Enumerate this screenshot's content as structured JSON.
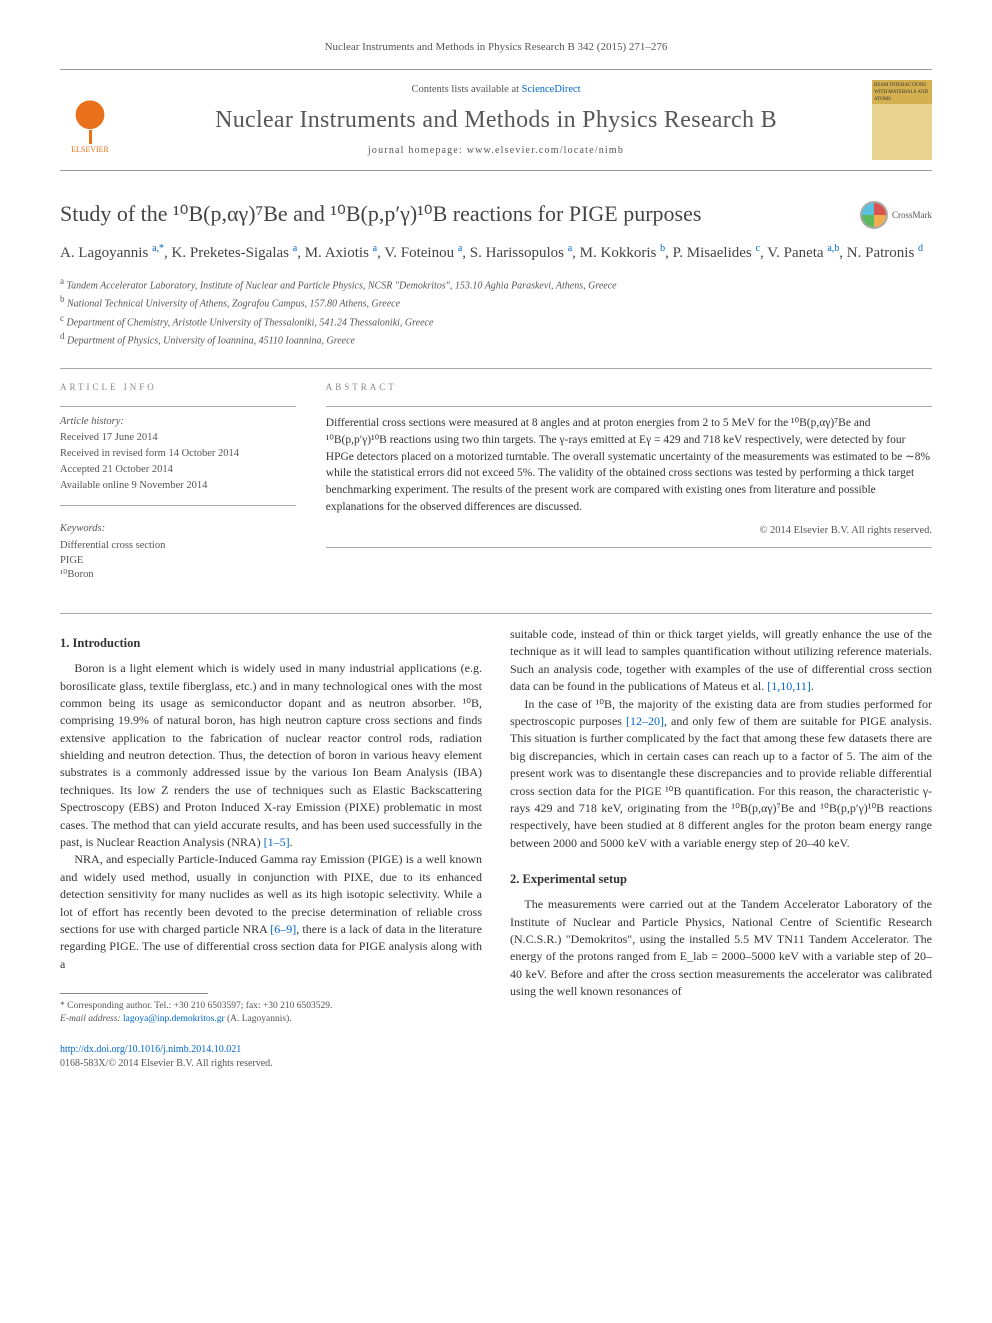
{
  "journal_ref": "Nuclear Instruments and Methods in Physics Research B 342 (2015) 271–276",
  "header": {
    "contents_prefix": "Contents lists available at ",
    "contents_link": "ScienceDirect",
    "journal_title": "Nuclear Instruments and Methods in Physics Research B",
    "homepage_prefix": "journal homepage: ",
    "homepage_url": "www.elsevier.com/locate/nimb",
    "elsevier_label": "ELSEVIER",
    "cover_text": "BEAM INTERACTIONS WITH MATERIALS AND ATOMS"
  },
  "title": "Study of the ¹⁰B(p,αγ)⁷Be and ¹⁰B(p,p′γ)¹⁰B reactions for PIGE purposes",
  "crossmark": "CrossMark",
  "authors_html": "A. Lagoyannis <sup>a,*</sup>, K. Preketes-Sigalas <sup>a</sup>, M. Axiotis <sup>a</sup>, V. Foteinou <sup>a</sup>, S. Harissopulos <sup>a</sup>, M. Kokkoris <sup>b</sup>, P. Misaelides <sup>c</sup>, V. Paneta <sup>a,b</sup>, N. Patronis <sup>d</sup>",
  "affiliations": [
    {
      "sup": "a",
      "text": "Tandem Accelerator Laboratory, Institute of Nuclear and Particle Physics, NCSR \"Demokritos\", 153.10 Aghia Paraskevi, Athens, Greece"
    },
    {
      "sup": "b",
      "text": "National Technical University of Athens, Zografou Campus, 157.80 Athens, Greece"
    },
    {
      "sup": "c",
      "text": "Department of Chemistry, Aristotle University of Thessaloniki, 541.24 Thessaloniki, Greece"
    },
    {
      "sup": "d",
      "text": "Department of Physics, University of Ioannina, 45110 Ioannina, Greece"
    }
  ],
  "article_info_label": "ARTICLE INFO",
  "abstract_label": "ABSTRACT",
  "history": {
    "head": "Article history:",
    "received": "Received 17 June 2014",
    "revised": "Received in revised form 14 October 2014",
    "accepted": "Accepted 21 October 2014",
    "online": "Available online 9 November 2014"
  },
  "keywords": {
    "head": "Keywords:",
    "items": [
      "Differential cross section",
      "PIGE",
      "¹⁰Boron"
    ]
  },
  "abstract_text": "Differential cross sections were measured at 8 angles and at proton energies from 2 to 5 MeV for the ¹⁰B(p,αγ)⁷Be and ¹⁰B(p,p′γ)¹⁰B reactions using two thin targets. The γ-rays emitted at Eγ = 429 and 718 keV respectively, were detected by four HPGe detectors placed on a motorized turntable. The overall systematic uncertainty of the measurements was estimated to be ∼8% while the statistical errors did not exceed 5%. The validity of the obtained cross sections was tested by performing a thick target benchmarking experiment. The results of the present work are compared with existing ones from literature and possible explanations for the observed differences are discussed.",
  "copyright": "© 2014 Elsevier B.V. All rights reserved.",
  "section1": {
    "heading": "1. Introduction",
    "p1": "Boron is a light element which is widely used in many industrial applications (e.g. borosilicate glass, textile fiberglass, etc.) and in many technological ones with the most common being its usage as semiconductor dopant and as neutron absorber. ¹⁰B, comprising 19.9% of natural boron, has high neutron capture cross sections and finds extensive application to the fabrication of nuclear reactor control rods, radiation shielding and neutron detection. Thus, the detection of boron in various heavy element substrates is a commonly addressed issue by the various Ion Beam Analysis (IBA) techniques. Its low Z renders the use of techniques such as Elastic Backscattering Spectroscopy (EBS) and Proton Induced X-ray Emission (PIXE) problematic in most cases. The method that can yield accurate results, and has been used successfully in the past, is Nuclear Reaction Analysis (NRA) ",
    "p1_ref": "[1–5]",
    "p1_tail": ".",
    "p2": "NRA, and especially Particle-Induced Gamma ray Emission (PIGE) is a well known and widely used method, usually in conjunction with PIXE, due to its enhanced detection sensitivity for many nuclides as well as its high isotopic selectivity. While a lot of effort has recently been devoted to the precise determination of reliable cross sections for use with charged particle NRA ",
    "p2_ref": "[6–9]",
    "p2_mid": ", there is a lack of data in the literature regarding PIGE. The use of differential cross section data for PIGE analysis along with a ",
    "p3_pre": "suitable code, instead of thin or thick target yields, will greatly enhance the use of the technique as it will lead to samples quantification without utilizing reference materials. Such an analysis code, together with examples of the use of differential cross section data can be found in the publications of Mateus et al. ",
    "p3_ref": "[1,10,11]",
    "p3_tail": ".",
    "p4_pre": "In the case of ¹⁰B, the majority of the existing data are from studies performed for spectroscopic purposes ",
    "p4_ref": "[12–20]",
    "p4_tail": ", and only few of them are suitable for PIGE analysis. This situation is further complicated by the fact that among these few datasets there are big discrepancies, which in certain cases can reach up to a factor of 5. The aim of the present work was to disentangle these discrepancies and to provide reliable differential cross section data for the PIGE ¹⁰B quantification. For this reason, the characteristic γ-rays 429 and 718 keV, originating from the ¹⁰B(p,αγ)⁷Be and ¹⁰B(p,p′γ)¹⁰B reactions respectively, have been studied at 8 different angles for the proton beam energy range between 2000 and 5000 keV with a variable energy step of 20–40 keV."
  },
  "section2": {
    "heading": "2. Experimental setup",
    "p1": "The measurements were carried out at the Tandem Accelerator Laboratory of the Institute of Nuclear and Particle Physics, National Centre of Scientific Research (N.C.S.R.) \"Demokritos\", using the installed 5.5 MV TN11 Tandem Accelerator. The energy of the protons ranged from E_lab = 2000–5000 keV with a variable step of 20–40 keV. Before and after the cross section measurements the accelerator was calibrated using the well known resonances of"
  },
  "footnote": {
    "corr": "* Corresponding author. Tel.: +30 210 6503597; fax: +30 210 6503529.",
    "email_label": "E-mail address: ",
    "email": "lagoya@inp.demokritos.gr",
    "email_tail": " (A. Lagoyannis)."
  },
  "footer": {
    "doi": "http://dx.doi.org/10.1016/j.nimb.2014.10.021",
    "issn_line": "0168-583X/© 2014 Elsevier B.V. All rights reserved."
  },
  "colors": {
    "link": "#0066cc",
    "elsevier_orange": "#e9711c",
    "text": "#333333",
    "muted": "#555555"
  }
}
